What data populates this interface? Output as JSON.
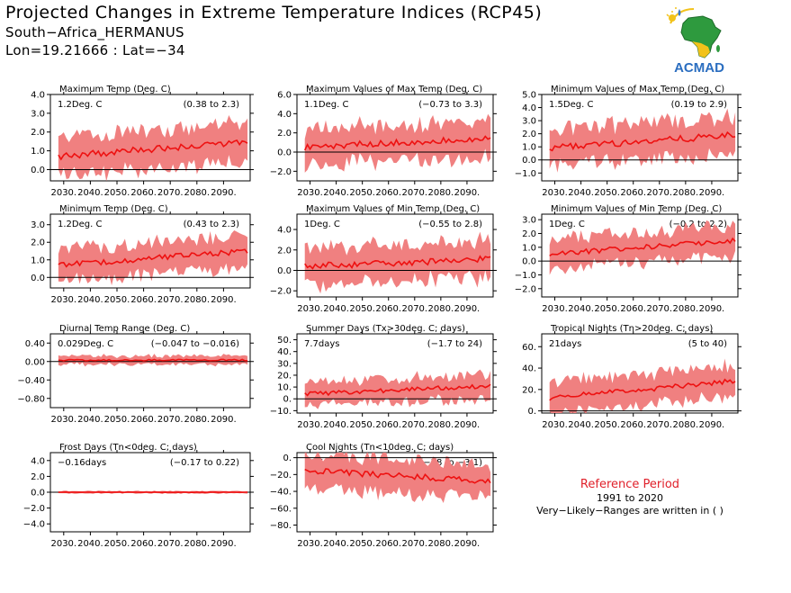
{
  "header": {
    "title": "Projected Changes in Extreme Temperature Indices (RCP45)",
    "location": "South−Africa_HERMANUS",
    "coords": "Lon=19.21666 : Lat=−34"
  },
  "logo": {
    "text": "ACMAD",
    "icon": "africa-map-logo"
  },
  "reference": {
    "title": "Reference Period",
    "period": "1991 to 2020",
    "note": "Very−Likely−Ranges are written in ( )"
  },
  "colors": {
    "line": "#ee1111",
    "band": "#f08080",
    "zero": "#000000"
  },
  "x_ticks": [
    "2030.",
    "2040.",
    "2050.",
    "2060.",
    "2070.",
    "2080.",
    "2090."
  ],
  "chart_data": [
    {
      "id": "maxtemp",
      "type": "line",
      "title": "Maximum Temp (Deg. C)",
      "change": "1.2Deg. C",
      "range": "(0.38 to 2.3)",
      "x_start": 2025,
      "x_end": 2100,
      "ylim": [
        -0.6,
        4.0
      ],
      "yticks": [
        "4.0",
        "3.0",
        "2.0",
        "1.0",
        "0.0"
      ],
      "ytick_values": [
        4,
        3,
        2,
        1,
        0
      ],
      "zero": 0,
      "median": [
        0.7,
        1.5
      ],
      "spread": 1.0
    },
    {
      "id": "maxmax",
      "type": "line",
      "title": "Maximum Values of Max Temp (Deg. C)",
      "change": "1.1Deg. C",
      "range": "(−0.73 to 3.3)",
      "x_start": 2025,
      "x_end": 2100,
      "ylim": [
        -3.0,
        6.0
      ],
      "yticks": [
        "6.0",
        "4.0",
        "2.0",
        "0.0",
        "−2.0"
      ],
      "ytick_values": [
        6,
        4,
        2,
        0,
        -2
      ],
      "zero": 0,
      "median": [
        0.5,
        1.5
      ],
      "spread": 1.9
    },
    {
      "id": "minmax",
      "type": "line",
      "title": "Minimum Values of Max Temp (Deg. C)",
      "change": "1.5Deg. C",
      "range": "(0.19 to 2.9)",
      "x_start": 2025,
      "x_end": 2100,
      "ylim": [
        -1.6,
        5.0
      ],
      "yticks": [
        "5.0",
        "4.0",
        "3.0",
        "2.0",
        "1.0",
        "0.0",
        "−1.0"
      ],
      "ytick_values": [
        5,
        4,
        3,
        2,
        1,
        0,
        -1
      ],
      "zero": 0,
      "median": [
        0.9,
        1.9
      ],
      "spread": 1.4
    },
    {
      "id": "mintemp",
      "type": "line",
      "title": "Minimum Temp (Deg. C)",
      "change": "1.2Deg. C",
      "range": "(0.43 to 2.3)",
      "x_start": 2025,
      "x_end": 2100,
      "ylim": [
        -0.6,
        3.6
      ],
      "yticks": [
        "3.0",
        "2.0",
        "1.0",
        "0.0"
      ],
      "ytick_values": [
        3,
        2,
        1,
        0
      ],
      "zero": 0,
      "median": [
        0.7,
        1.5
      ],
      "spread": 0.9
    },
    {
      "id": "maxmin",
      "type": "line",
      "title": "Maximum Values of Min Temp (Deg. C)",
      "change": "1Deg. C",
      "range": "(−0.55 to 2.8)",
      "x_start": 2025,
      "x_end": 2100,
      "ylim": [
        -2.6,
        5.5
      ],
      "yticks": [
        "4.0",
        "2.0",
        "0.0",
        "−2.0"
      ],
      "ytick_values": [
        4,
        2,
        0,
        -2
      ],
      "zero": 0,
      "median": [
        0.4,
        1.1
      ],
      "spread": 1.8
    },
    {
      "id": "minmin",
      "type": "line",
      "title": "Minimum Values of Min Temp (Deg. C)",
      "change": "1Deg. C",
      "range": "(−0.2 to 2.2)",
      "x_start": 2025,
      "x_end": 2100,
      "ylim": [
        -2.6,
        3.4
      ],
      "yticks": [
        "3.0",
        "2.0",
        "1.0",
        "0.0",
        "−1.0",
        "−2.0"
      ],
      "ytick_values": [
        3,
        2,
        1,
        0,
        -1,
        -2
      ],
      "zero": 0,
      "median": [
        0.5,
        1.5
      ],
      "spread": 1.1
    },
    {
      "id": "dtr",
      "type": "line",
      "title": "Diurnal Temp Range (Deg. C)",
      "change": "0.029Deg. C",
      "range": "(−0.047 to −0.016)",
      "x_start": 2025,
      "x_end": 2100,
      "ylim": [
        -1.0,
        0.6
      ],
      "yticks": [
        "0.40",
        "0.00",
        "−0.40",
        "−0.80"
      ],
      "ytick_values": [
        0.4,
        0,
        -0.4,
        -0.8
      ],
      "zero": 0,
      "median": [
        0.03,
        0.03
      ],
      "spread": 0.09
    },
    {
      "id": "summer",
      "type": "line",
      "title": "Summer Days (Tx>30deg. C; days)",
      "change": "7.7days",
      "range": "(−1.7 to 24)",
      "x_start": 2025,
      "x_end": 2100,
      "ylim": [
        -12,
        55
      ],
      "yticks": [
        "50.",
        "40.",
        "30.",
        "20.",
        "10.",
        "0.",
        "−10."
      ],
      "ytick_values": [
        50,
        40,
        30,
        20,
        10,
        0,
        -10
      ],
      "zero": 0,
      "median": [
        4,
        11
      ],
      "spread": 10
    },
    {
      "id": "tropical",
      "type": "line",
      "title": "Tropical Nights (Tn>20deg. C; days)",
      "change": "21days",
      "range": "(5 to 40)",
      "x_start": 2025,
      "x_end": 2100,
      "ylim": [
        -2,
        72
      ],
      "yticks": [
        "60.",
        "40.",
        "20.",
        "0."
      ],
      "ytick_values": [
        60,
        40,
        20,
        0
      ],
      "zero": 0,
      "median": [
        12,
        28
      ],
      "spread": 14
    },
    {
      "id": "frost",
      "type": "line",
      "title": "Frost Days (Tn<0deg. C; days)",
      "change": "−0.16days",
      "range": "(−0.17 to 0.22)",
      "x_start": 2025,
      "x_end": 2100,
      "ylim": [
        -5,
        5
      ],
      "yticks": [
        "4.0",
        "2.0",
        "0.0",
        "−2.0",
        "−4.0"
      ],
      "ytick_values": [
        4,
        2,
        0,
        -2,
        -4
      ],
      "zero": 0,
      "median": [
        0,
        0
      ],
      "spread": 0.15
    },
    {
      "id": "cool",
      "type": "line",
      "title": "Cool Nights (Tn<10deg. C; days)",
      "change": "−27days",
      "range": "(−58 to −3.1)",
      "x_start": 2025,
      "x_end": 2100,
      "ylim": [
        -88,
        6
      ],
      "yticks": [
        "0.",
        "−20.",
        "−40.",
        "−60.",
        "−80."
      ],
      "ytick_values": [
        0,
        -20,
        -40,
        -60,
        -80
      ],
      "zero": 0,
      "median": [
        -15,
        -28
      ],
      "spread": 20
    }
  ]
}
